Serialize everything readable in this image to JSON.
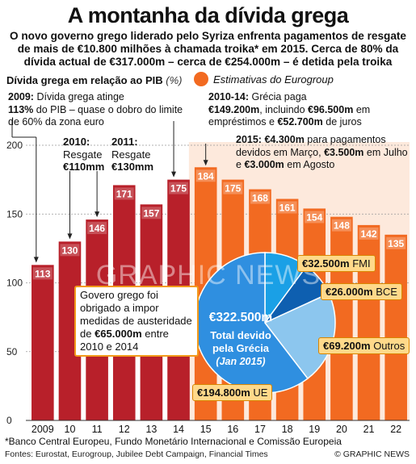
{
  "title": "A montanha da dívida grega",
  "intro": "O novo governo grego liderado pelo Syriza enfrenta pagamentos de resgate de mais de €10.800 milhões à chamada troika* em 2015. Cerca de 80% da dívida actual de €317.000m – cerca de €254.000m – é detida pela troika",
  "data_label": "Dívida grega em relação ao PIB",
  "data_unit": "(%)",
  "legend_label": "Estimativas do Eurogroup",
  "colors": {
    "actual": "#b8202a",
    "estimate": "#f26a21",
    "callout": "#f29a1b"
  },
  "chart_data": {
    "type": "bar",
    "ylim": [
      0,
      200
    ],
    "yticks": [
      0,
      50,
      100,
      150,
      200
    ],
    "categories": [
      "2009",
      "10",
      "11",
      "12",
      "13",
      "14",
      "15",
      "16",
      "17",
      "18",
      "19",
      "20",
      "21",
      "22"
    ],
    "values": [
      113,
      130,
      146,
      171,
      157,
      175,
      184,
      175,
      168,
      161,
      154,
      148,
      142,
      135
    ],
    "estimate_from_index": 6,
    "reference_line": 60
  },
  "notes": {
    "n2009": {
      "bold1": "2009:",
      "t1": " Dívida grega atinge",
      "bold2": "113%",
      "t2": " do PIB – quase o dobro do limite de 60% da zona euro"
    },
    "n2010": {
      "bold": "2010:",
      "line2": "Resgate",
      "amount": "€110mm"
    },
    "n2011": {
      "bold": "2011:",
      "line2": "Resgate",
      "amount": "€130mm"
    },
    "n1014": {
      "bold1": "2010-14:",
      "t1": " Grécia paga",
      "amt1": "€149.200m",
      "t2": ", incluindo ",
      "amt2": "€96.500m",
      "t3": " em empréstimos e ",
      "amt3": "€52.700m",
      "t4": " de juros"
    },
    "n2015": {
      "bold1": "2015:",
      "amt1": " €4.300m",
      "t1": " para pagamentos devidos em Março, ",
      "amt2": "€3.500m",
      "t2": " em Julho e ",
      "amt3": "€3.000m",
      "t3": " em Agosto"
    },
    "austerity": {
      "t1": "Govero grego foi obrigado a impor medidas de austeridade de ",
      "amt": "€65.000m",
      "t2": " entre 2010 e 2014"
    }
  },
  "pie": {
    "total_amount": "€322.500m",
    "total_label1": "Total devido",
    "total_label2": "pela Grécia",
    "total_label3": "(Jan 2015)",
    "slices": [
      {
        "name": "FMI",
        "amount": "€32.500m",
        "value": 32500,
        "color": "#1aa0e6"
      },
      {
        "name": "BCE",
        "amount": "€26.000m",
        "value": 26000,
        "color": "#0e5fb0"
      },
      {
        "name": "Outros",
        "amount": "€69.200m",
        "value": 69200,
        "color": "#8cc6ee"
      },
      {
        "name": "UE",
        "amount": "€194.800m",
        "value": 194800,
        "color": "#2f8fe0"
      }
    ]
  },
  "watermark": "GRAPHIC NEWS",
  "footnote": "*Banco Central Europeu, Fundo Monetário Internacional e Comissão Europeia",
  "sources": "Fontes: Eurostat, Eurogroup, Jubilee Debt Campaign, Financial Times",
  "credit": "© GRAPHIC NEWS"
}
